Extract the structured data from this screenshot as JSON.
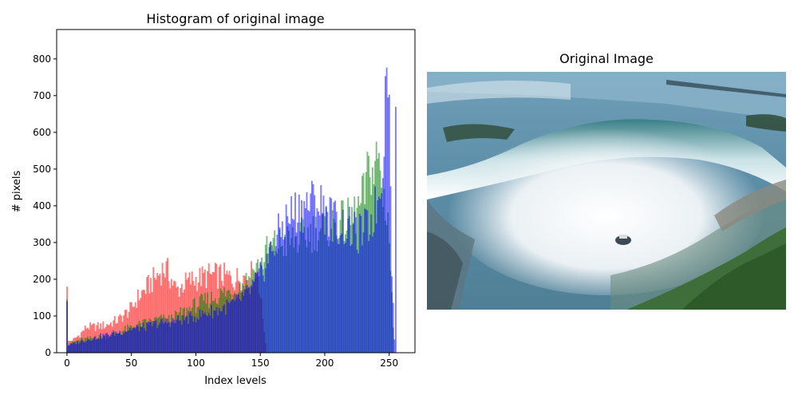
{
  "figure": {
    "image_panel": {
      "title": "Original Image",
      "description": "Aerial photo of Horseshoe Falls (Niagara Falls) with mist and a tour boat"
    }
  },
  "chart_data": {
    "type": "bar",
    "title": "Histogram of original image",
    "xlabel": "Index levels",
    "ylabel": "# pixels",
    "xlim": [
      -8,
      270
    ],
    "ylim": [
      0,
      880
    ],
    "xticks": [
      0,
      50,
      100,
      150,
      200,
      250
    ],
    "yticks": [
      0,
      100,
      200,
      300,
      400,
      500,
      600,
      700,
      800
    ],
    "grid": false,
    "legend": "none",
    "series": [
      {
        "channel": "red",
        "color": "#ff0000",
        "alpha": 0.5,
        "anchors": [
          [
            0,
            180
          ],
          [
            1,
            30
          ],
          [
            5,
            35
          ],
          [
            10,
            50
          ],
          [
            15,
            70
          ],
          [
            20,
            70
          ],
          [
            30,
            75
          ],
          [
            40,
            90
          ],
          [
            50,
            120
          ],
          [
            55,
            150
          ],
          [
            60,
            170
          ],
          [
            65,
            190
          ],
          [
            70,
            210
          ],
          [
            75,
            230
          ],
          [
            78,
            220
          ],
          [
            85,
            170
          ],
          [
            90,
            185
          ],
          [
            95,
            195
          ],
          [
            100,
            200
          ],
          [
            110,
            210
          ],
          [
            120,
            210
          ],
          [
            130,
            200
          ],
          [
            140,
            210
          ],
          [
            148,
            220
          ],
          [
            155,
            0
          ],
          [
            255,
            0
          ]
        ]
      },
      {
        "channel": "green",
        "color": "#008000",
        "alpha": 0.5,
        "anchors": [
          [
            0,
            145
          ],
          [
            1,
            25
          ],
          [
            10,
            35
          ],
          [
            20,
            40
          ],
          [
            30,
            45
          ],
          [
            40,
            55
          ],
          [
            50,
            70
          ],
          [
            60,
            80
          ],
          [
            70,
            90
          ],
          [
            80,
            90
          ],
          [
            85,
            100
          ],
          [
            90,
            110
          ],
          [
            100,
            130
          ],
          [
            110,
            145
          ],
          [
            120,
            160
          ],
          [
            130,
            170
          ],
          [
            140,
            200
          ],
          [
            150,
            240
          ],
          [
            155,
            275
          ],
          [
            160,
            290
          ],
          [
            170,
            300
          ],
          [
            180,
            310
          ],
          [
            190,
            330
          ],
          [
            200,
            340
          ],
          [
            210,
            350
          ],
          [
            220,
            360
          ],
          [
            228,
            400
          ],
          [
            232,
            450
          ],
          [
            235,
            520
          ],
          [
            238,
            480
          ],
          [
            241,
            540
          ],
          [
            245,
            430
          ],
          [
            249,
            380
          ],
          [
            252,
            150
          ],
          [
            254,
            0
          ],
          [
            255,
            0
          ]
        ]
      },
      {
        "channel": "blue",
        "color": "#0000ff",
        "alpha": 0.5,
        "anchors": [
          [
            0,
            140
          ],
          [
            1,
            20
          ],
          [
            10,
            30
          ],
          [
            20,
            40
          ],
          [
            30,
            48
          ],
          [
            40,
            55
          ],
          [
            50,
            65
          ],
          [
            60,
            70
          ],
          [
            70,
            80
          ],
          [
            80,
            85
          ],
          [
            90,
            90
          ],
          [
            100,
            100
          ],
          [
            110,
            110
          ],
          [
            120,
            120
          ],
          [
            130,
            135
          ],
          [
            140,
            160
          ],
          [
            150,
            210
          ],
          [
            155,
            250
          ],
          [
            160,
            290
          ],
          [
            165,
            330
          ],
          [
            170,
            360
          ],
          [
            175,
            380
          ],
          [
            180,
            390
          ],
          [
            185,
            400
          ],
          [
            190,
            410
          ],
          [
            195,
            405
          ],
          [
            200,
            390
          ],
          [
            205,
            370
          ],
          [
            210,
            350
          ],
          [
            215,
            345
          ],
          [
            220,
            335
          ],
          [
            225,
            320
          ],
          [
            230,
            330
          ],
          [
            235,
            350
          ],
          [
            240,
            400
          ],
          [
            243,
            450
          ],
          [
            245,
            550
          ],
          [
            247,
            700
          ],
          [
            248,
            836
          ],
          [
            249,
            820
          ],
          [
            250,
            640
          ],
          [
            251,
            450
          ],
          [
            252,
            250
          ],
          [
            253,
            120
          ],
          [
            254,
            40
          ],
          [
            255,
            670
          ]
        ]
      }
    ]
  }
}
